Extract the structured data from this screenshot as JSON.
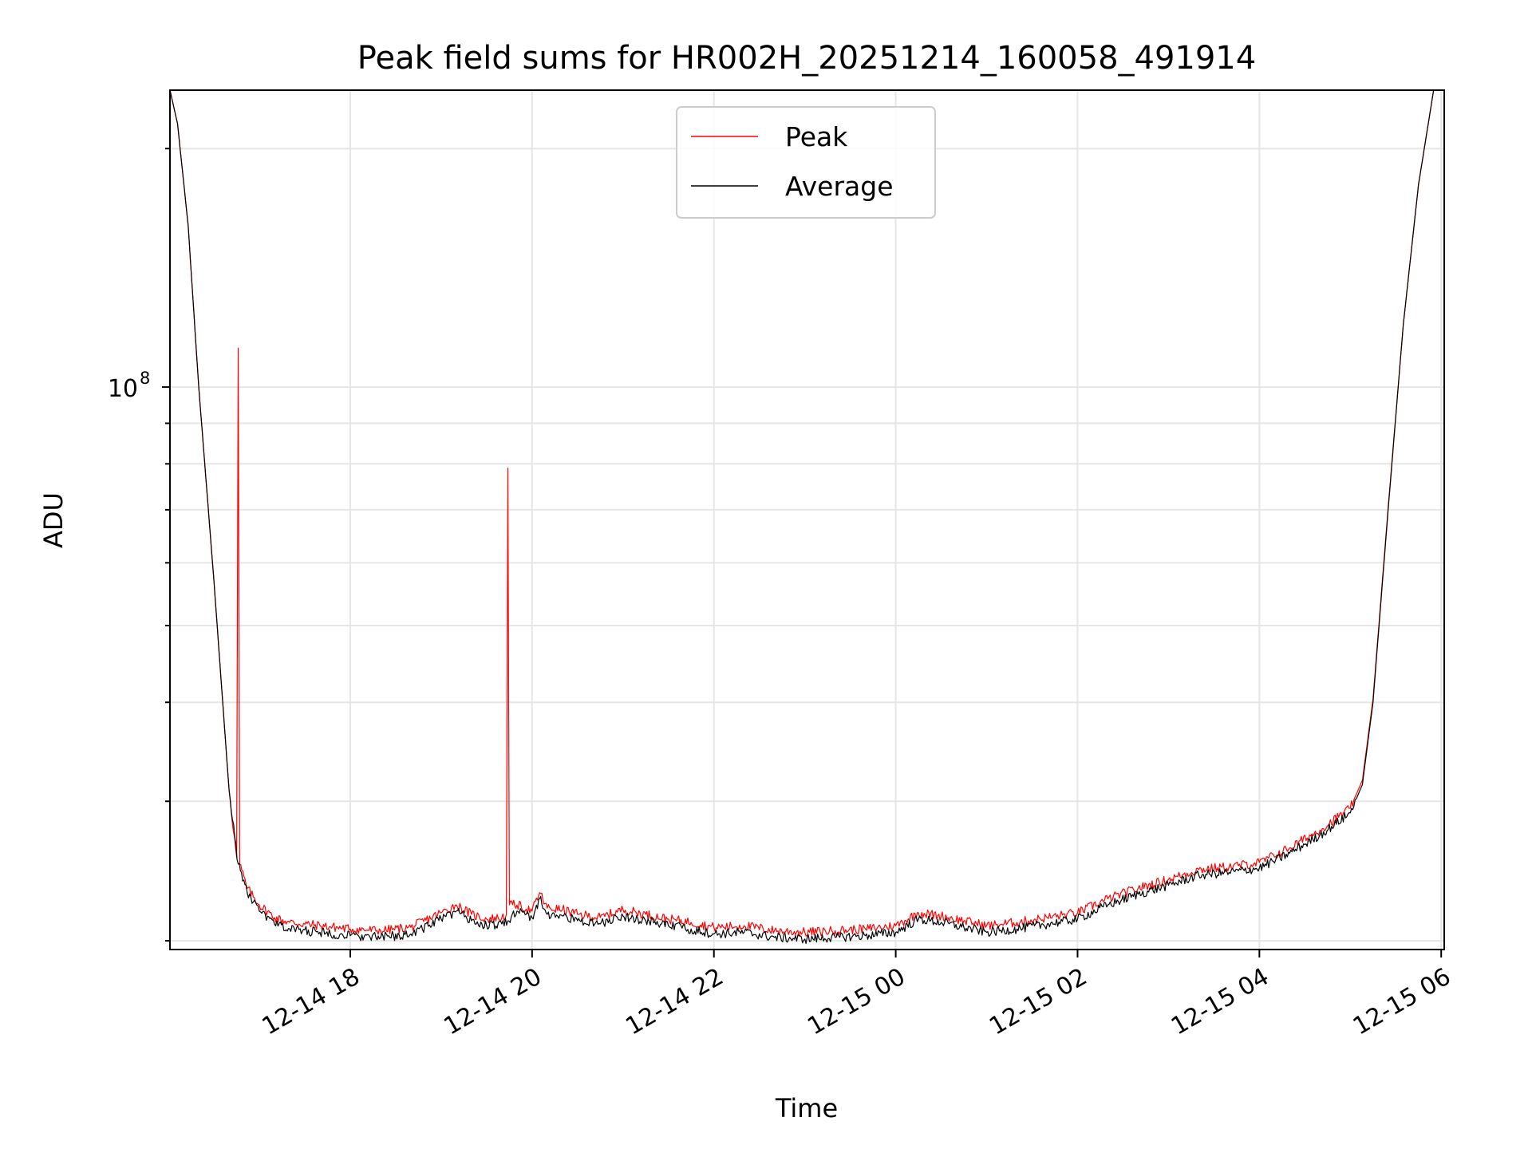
{
  "chart_data": {
    "type": "line",
    "title": "Peak field sums for HR002H_20251214_160058_491914",
    "xlabel": "Time",
    "ylabel": "ADU",
    "y_scale": "log",
    "ylim": [
      19500000,
      237000000
    ],
    "xlim": [
      "12-14 16:01",
      "12-15 06:02"
    ],
    "x_ticks": [
      "12-14 18",
      "12-14 20",
      "12-14 22",
      "12-15 00",
      "12-15 02",
      "12-15 04",
      "12-15 06"
    ],
    "x_tick_times": [
      "12-14 18:00",
      "12-14 20:00",
      "12-14 22:00",
      "12-15 00:00",
      "12-15 02:00",
      "12-15 04:00",
      "12-15 06:00"
    ],
    "y_ticks": [
      {
        "base": "10",
        "exp": "8",
        "value": 100000000
      }
    ],
    "grid": true,
    "legend": {
      "placement": "upper center",
      "entries": [
        "Peak",
        "Average"
      ]
    },
    "colors": {
      "Peak": "#ff0000",
      "Average": "#000000"
    },
    "series": [
      {
        "name": "Average",
        "x": [
          "12-14 16:01",
          "12-14 16:06",
          "12-14 16:13",
          "12-14 16:20",
          "12-14 16:30",
          "12-14 16:40",
          "12-14 16:46",
          "12-14 16:52",
          "12-14 17:00",
          "12-14 17:10",
          "12-14 17:20",
          "12-14 17:40",
          "12-14 18:00",
          "12-14 18:20",
          "12-14 18:40",
          "12-14 19:00",
          "12-14 19:10",
          "12-14 19:20",
          "12-14 19:30",
          "12-14 19:40",
          "12-14 19:44",
          "12-14 19:50",
          "12-14 20:00",
          "12-14 20:05",
          "12-14 20:10",
          "12-14 20:20",
          "12-14 20:30",
          "12-14 20:45",
          "12-14 21:00",
          "12-14 21:15",
          "12-14 21:30",
          "12-14 21:45",
          "12-14 22:00",
          "12-14 22:20",
          "12-14 22:40",
          "12-14 23:00",
          "12-14 23:20",
          "12-14 23:40",
          "12-15 00:00",
          "12-15 00:15",
          "12-15 00:30",
          "12-15 00:45",
          "12-15 01:00",
          "12-15 01:20",
          "12-15 01:40",
          "12-15 02:00",
          "12-15 02:20",
          "12-15 02:40",
          "12-15 03:00",
          "12-15 03:20",
          "12-15 03:40",
          "12-15 04:00",
          "12-15 04:20",
          "12-15 04:40",
          "12-15 05:00",
          "12-15 05:08",
          "12-15 05:15",
          "12-15 05:25",
          "12-15 05:35",
          "12-15 05:45",
          "12-15 05:55",
          "12-15 06:02"
        ],
        "y": [
          237000000,
          215000000,
          160000000,
          100000000,
          57000000,
          31000000,
          25000000,
          23000000,
          21800000,
          21000000,
          20700000,
          20500000,
          20300000,
          20200000,
          20400000,
          21300000,
          21800000,
          21200000,
          20900000,
          21000000,
          21200000,
          21800000,
          21400000,
          22600000,
          21600000,
          21500000,
          21200000,
          21000000,
          21500000,
          21200000,
          20900000,
          20700000,
          20400000,
          20500000,
          20200000,
          20100000,
          20200000,
          20300000,
          20500000,
          21300000,
          21100000,
          20800000,
          20500000,
          20700000,
          21000000,
          21300000,
          22200000,
          22900000,
          23500000,
          24200000,
          24400000,
          24700000,
          25800000,
          27200000,
          29000000,
          31500000,
          40000000,
          70000000,
          120000000,
          180000000,
          237000000,
          237000000
        ]
      },
      {
        "name": "Peak",
        "x": [
          "12-14 16:01",
          "12-14 16:06",
          "12-14 16:13",
          "12-14 16:20",
          "12-14 16:30",
          "12-14 16:40",
          "12-14 16:45",
          "12-14 16:46",
          "12-14 16:47",
          "12-14 16:52",
          "12-14 17:00",
          "12-14 17:10",
          "12-14 17:20",
          "12-14 17:40",
          "12-14 18:00",
          "12-14 18:20",
          "12-14 18:40",
          "12-14 19:00",
          "12-14 19:10",
          "12-14 19:20",
          "12-14 19:30",
          "12-14 19:40",
          "12-14 19:43",
          "12-14 19:44",
          "12-14 19:45",
          "12-14 19:50",
          "12-14 20:00",
          "12-14 20:05",
          "12-14 20:10",
          "12-14 20:20",
          "12-14 20:30",
          "12-14 20:45",
          "12-14 21:00",
          "12-14 21:15",
          "12-14 21:30",
          "12-14 21:45",
          "12-14 22:00",
          "12-14 22:20",
          "12-14 22:40",
          "12-14 23:00",
          "12-14 23:20",
          "12-14 23:40",
          "12-15 00:00",
          "12-15 00:15",
          "12-15 00:30",
          "12-15 00:45",
          "12-15 01:00",
          "12-15 01:20",
          "12-15 01:40",
          "12-15 02:00",
          "12-15 02:20",
          "12-15 02:40",
          "12-15 03:00",
          "12-15 03:20",
          "12-15 03:40",
          "12-15 04:00",
          "12-15 04:20",
          "12-15 04:40",
          "12-15 05:00",
          "12-15 05:08",
          "12-15 05:15",
          "12-15 05:25",
          "12-15 05:35",
          "12-15 05:45",
          "12-15 05:55",
          "12-15 06:02"
        ],
        "y": [
          237000000,
          215000000,
          160000000,
          100000000,
          57000000,
          31000000,
          25500000,
          112000000,
          25000000,
          23300000,
          22200000,
          21400000,
          21100000,
          20900000,
          20700000,
          20600000,
          20800000,
          21700000,
          22200000,
          21600000,
          21300000,
          21400000,
          21600000,
          79000000,
          22200000,
          22200000,
          21800000,
          23000000,
          22000000,
          21900000,
          21600000,
          21400000,
          21900000,
          21600000,
          21300000,
          21100000,
          20800000,
          20900000,
          20600000,
          20500000,
          20600000,
          20700000,
          20900000,
          21700000,
          21500000,
          21200000,
          20900000,
          21100000,
          21400000,
          21700000,
          22600000,
          23300000,
          23900000,
          24600000,
          24800000,
          25100000,
          26200000,
          27600000,
          29400000,
          31900000,
          40400000,
          70500000,
          120000000,
          180000000,
          237000000,
          237000000
        ]
      }
    ]
  }
}
